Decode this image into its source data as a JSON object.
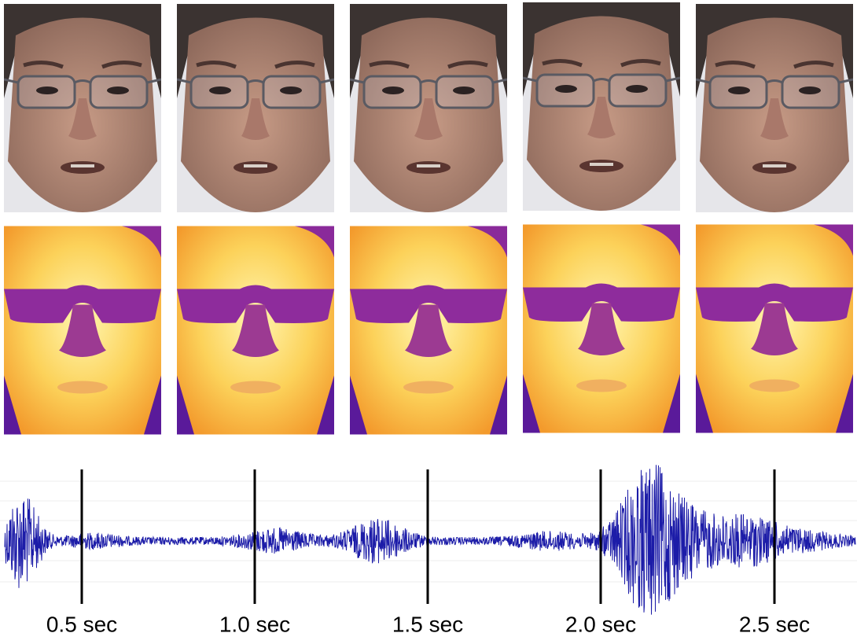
{
  "timeline": {
    "labels": [
      "0.5 sec",
      "1.0 sec",
      "1.5 sec",
      "2.0 sec",
      "2.5 sec"
    ]
  }
}
